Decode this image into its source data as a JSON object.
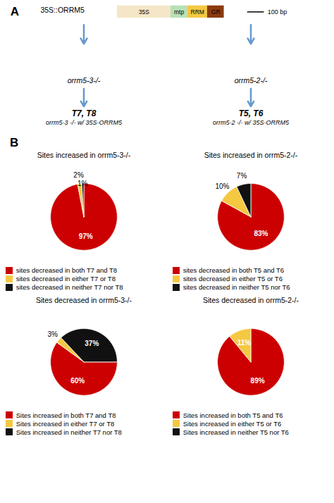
{
  "chart_data": [
    {
      "type": "diagram",
      "title": "35S::ORRM5",
      "categories": [
        "35S",
        "mtp",
        "RRM",
        "GR"
      ],
      "colors": [
        "#f5e6c8",
        "#b8e0b8",
        "#f5c842",
        "#8b3a0f"
      ],
      "color": "#6699cc",
      "annotations": [
        "A",
        "100 bp",
        "orrm5-3-/-",
        "orrm5-2-/-",
        "T7, T8",
        "T5, T6",
        "orrm5-3 -/- w/ 35S-ORRM5",
        "orrm5-2 -/- w/ 35S-ORRM5",
        "B"
      ]
    },
    {
      "type": "pie",
      "title": "Sites increased in orrm5-3-/-",
      "categories": [
        "sites decreased in both T7 and T8",
        "sites decreased in either T7 or T8",
        "sites decreased in neither T7 nor T8"
      ],
      "values": [
        97,
        2,
        1
      ],
      "value_labels": [
        "97%",
        "2%",
        "1%"
      ],
      "colors": [
        "#cc0000",
        "#f5c842",
        "#111111"
      ],
      "data_labels": true,
      "legend": "bottom"
    },
    {
      "type": "pie",
      "title": "Sites increased in orrm5-2-/-",
      "categories": [
        "sites decreased in both T5 and T6",
        "sites decreased in either T5 or T6",
        "sites decreased in neither T5 nor T6"
      ],
      "values": [
        83,
        10,
        7
      ],
      "value_labels": [
        "83%",
        "10%",
        "7%"
      ],
      "colors": [
        "#cc0000",
        "#f5c842",
        "#111111"
      ],
      "data_labels": true,
      "legend": "bottom"
    },
    {
      "type": "pie",
      "title": "Sites decreased in orrm5-3-/-",
      "categories": [
        "Sites increased in both T7 and T8",
        "Sites increased in either T7 or T8",
        "Sites increased in neither T7 nor T8"
      ],
      "values": [
        60,
        3,
        37
      ],
      "value_labels": [
        "60%",
        "3%",
        "37%"
      ],
      "colors": [
        "#cc0000",
        "#f5c842",
        "#111111"
      ],
      "data_labels": true,
      "legend": "bottom"
    },
    {
      "type": "pie",
      "title": "Sites decreased in orrm5-2-/-",
      "categories": [
        "Sites increased in both T5 and T6",
        "Sites increased in either T5 or T6",
        "Sites increased in neither T5 nor T6"
      ],
      "values": [
        89,
        11,
        0
      ],
      "value_labels": [
        "89%",
        "11%",
        null
      ],
      "colors": [
        "#cc0000",
        "#f5c842",
        "#111111"
      ],
      "data_labels": true,
      "legend": "bottom"
    }
  ]
}
